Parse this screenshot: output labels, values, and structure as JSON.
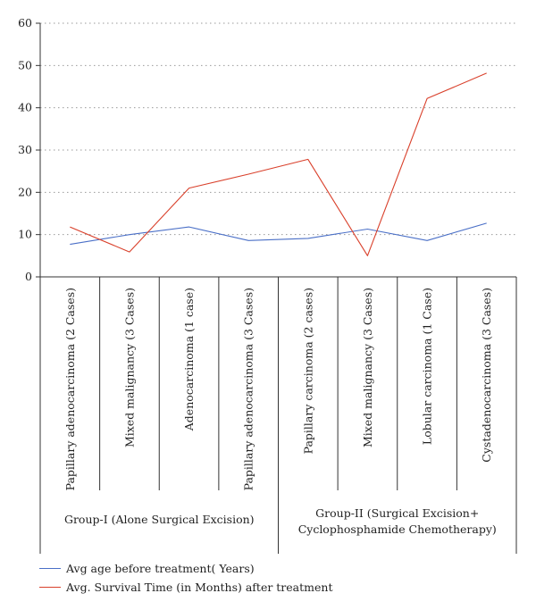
{
  "chart_data": {
    "type": "line",
    "categories": [
      "Papillary adenocarcinoma (2 Cases)",
      "Mixed malignancy (3 Cases)",
      "Adenocarcinoma (1 case)",
      "Papillary adenocarcinoma (3 Cases)",
      "Papillary carcinoma (2 cases)",
      "Mixed malignancy (3 Cases)",
      "Lobular carcinoma (1 Case)",
      "Cystadenocarcinoma (3 Cases)"
    ],
    "groups": [
      {
        "label_lines": [
          "Group-I (Alone Surgical Excision)"
        ],
        "span": [
          0,
          3
        ]
      },
      {
        "label_lines": [
          "Group-II (Surgical Excision+",
          "Cyclophosphamide Chemotherapy)"
        ],
        "span": [
          4,
          7
        ]
      }
    ],
    "series": [
      {
        "name": "Avg age before treatment( Years)",
        "color": "#4a6fc7",
        "values": [
          7.7,
          10.0,
          11.8,
          8.6,
          9.1,
          11.3,
          8.6,
          12.7
        ]
      },
      {
        "name": "Avg. Survival Time (in Months) after treatment",
        "color": "#d9402b",
        "values": [
          11.8,
          5.9,
          21.0,
          24.3,
          27.8,
          5.0,
          42.2,
          48.2
        ]
      }
    ],
    "ylim": [
      0,
      60
    ],
    "yticks": [
      0,
      10,
      20,
      30,
      40,
      50,
      60
    ],
    "grid": true,
    "legend_position": "bottom-left",
    "title": "",
    "xlabel": "",
    "ylabel": ""
  }
}
